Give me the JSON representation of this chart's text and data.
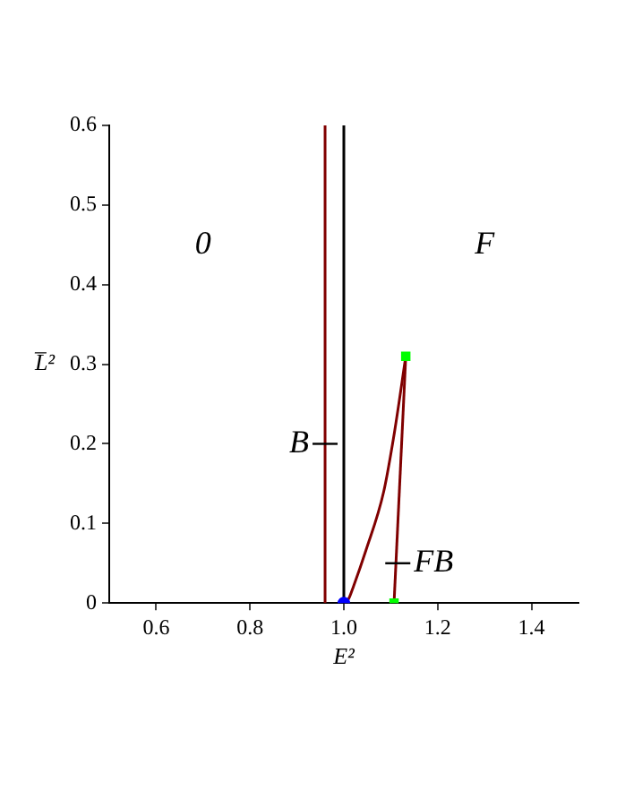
{
  "chart_data": {
    "type": "line",
    "xlabel": "E²",
    "ylabel": "L̅²",
    "xlim": [
      0.5,
      1.5
    ],
    "xticks": [
      0.6,
      0.8,
      {
        "value": 1.0,
        "label": "1.0"
      },
      1.2,
      1.4
    ],
    "ylim": [
      0,
      0.6
    ],
    "yticks": [
      0,
      0.1,
      0.2,
      0.3,
      0.4,
      0.5,
      0.6
    ],
    "legend": false,
    "marker": "none",
    "line_style": "solid",
    "ref_lines": [
      {
        "axis": "x",
        "value": 1.0,
        "color": "#000000"
      }
    ],
    "series": [
      {
        "color": "#800000",
        "x": [
          0.96,
          0.96
        ],
        "values": [
          0,
          0.6
        ]
      },
      {
        "color": "#800000",
        "x": [
          1.0,
          1.01,
          1.02,
          1.047,
          1.085,
          1.108,
          1.132
        ],
        "values": [
          0,
          0.005,
          0.02,
          0.066,
          0.14,
          0.215,
          0.31
        ]
      },
      {
        "color": "#800000",
        "x": [
          1.132,
          1.107
        ],
        "values": [
          0.31,
          0
        ]
      },
      {
        "type": "scatter",
        "color": "#0000ff",
        "marker": "circle",
        "x": [
          1.0
        ],
        "values": [
          0
        ]
      },
      {
        "type": "scatter",
        "color": "#00ff00",
        "marker": "square",
        "x": [
          1.132,
          1.107
        ],
        "values": [
          0.31,
          0
        ]
      }
    ],
    "annotations": [
      "0",
      "F",
      {
        "text": "B",
        "x": 0.96,
        "y": 0.2
      },
      {
        "text": "FB",
        "x": 1.115,
        "y": 0.05
      }
    ]
  }
}
